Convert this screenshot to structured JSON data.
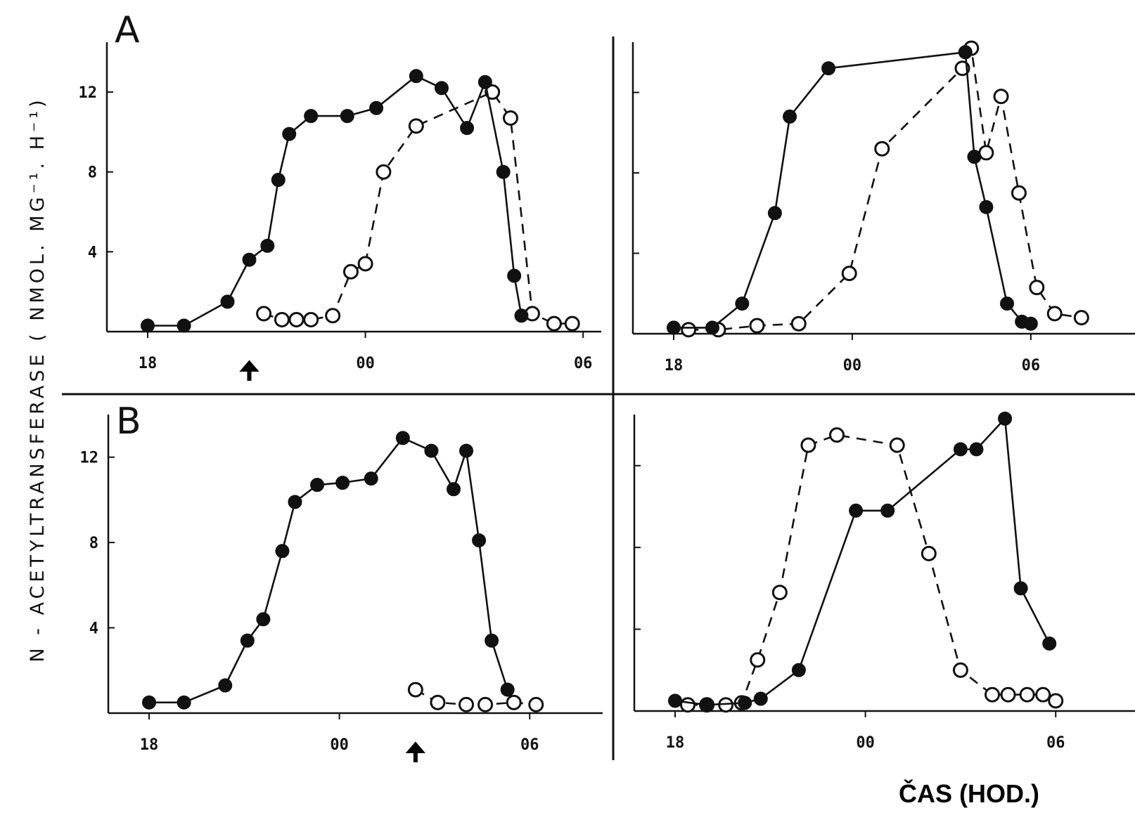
{
  "figure": {
    "y_axis_label": "N - ACETYLTRANSFERASE ( NMOL. MG⁻¹. H⁻¹)",
    "x_axis_title": "ČAS (HOD.)",
    "panel_labels": [
      "A",
      "B"
    ]
  },
  "chart_data": [
    {
      "type": "line",
      "panel": "A",
      "xlabel": "",
      "ylabel": "",
      "x_ticks": [
        "18",
        "00",
        "06"
      ],
      "y_ticks": [
        "4",
        "8",
        "12"
      ],
      "xlim": [
        18,
        30.5
      ],
      "ylim": [
        0,
        14.5
      ],
      "annotations": [
        {
          "type": "arrow",
          "x": 20.8
        }
      ],
      "series": [
        {
          "marker": "filled",
          "style": "solid",
          "x": [
            18,
            19,
            20.2,
            20.8,
            21.3,
            21.6,
            21.9,
            22.5,
            23.5,
            24.3,
            25.4,
            26.1,
            26.8,
            27.3,
            27.8,
            28.1,
            28.3
          ],
          "y": [
            0.3,
            0.3,
            1.5,
            3.6,
            4.3,
            7.6,
            9.9,
            10.8,
            10.8,
            11.2,
            12.8,
            12.2,
            10.2,
            12.5,
            8.0,
            2.8,
            0.8
          ]
        },
        {
          "marker": "open",
          "style": "dashed",
          "x": [
            21.2,
            21.7,
            22.1,
            22.5,
            23.1,
            23.6,
            24.0,
            24.5,
            25.4,
            27.5,
            28.0,
            28.6,
            29.2,
            29.7
          ],
          "y": [
            0.9,
            0.6,
            0.6,
            0.6,
            0.8,
            3.0,
            3.4,
            8.0,
            10.3,
            12.0,
            10.7,
            0.9,
            0.4,
            0.4
          ]
        }
      ]
    },
    {
      "type": "line",
      "panel": "A",
      "xlabel": "",
      "ylabel": "",
      "x_ticks": [
        "18",
        "00",
        "06"
      ],
      "y_ticks": [
        "",
        "",
        ""
      ],
      "xlim": [
        18,
        33.5
      ],
      "ylim": [
        0,
        14.5
      ],
      "series": [
        {
          "marker": "filled",
          "style": "solid",
          "x": [
            18,
            19.3,
            20.3,
            21.4,
            21.9,
            23.2,
            27.8,
            28.1,
            28.5,
            29.2,
            29.7,
            30.0
          ],
          "y": [
            0.3,
            0.3,
            1.5,
            6.0,
            10.8,
            13.2,
            14.0,
            8.8,
            6.3,
            1.5,
            0.6,
            0.5
          ]
        },
        {
          "marker": "open",
          "style": "dashed",
          "x": [
            18.5,
            19.5,
            20.8,
            22.2,
            23.9,
            25.0,
            27.7,
            28.0,
            28.5,
            29.0,
            29.6,
            30.2,
            30.8,
            31.7
          ],
          "y": [
            0.2,
            0.2,
            0.4,
            0.5,
            3.0,
            9.2,
            13.2,
            14.2,
            9.0,
            11.8,
            7.0,
            2.3,
            1.0,
            0.8
          ]
        }
      ]
    },
    {
      "type": "line",
      "panel": "B",
      "xlabel": "",
      "ylabel": "",
      "x_ticks": [
        "18",
        "00",
        "06"
      ],
      "y_ticks": [
        "4",
        "8",
        "12"
      ],
      "xlim": [
        18,
        32.3
      ],
      "ylim": [
        0,
        14
      ],
      "annotations": [
        {
          "type": "arrow",
          "x": 26.4
        }
      ],
      "series": [
        {
          "marker": "filled",
          "style": "solid",
          "x": [
            18,
            19.1,
            20.4,
            21.1,
            21.6,
            22.2,
            22.6,
            23.3,
            24.1,
            25.0,
            26.0,
            26.9,
            27.6,
            28.0,
            28.4,
            28.8,
            29.3
          ],
          "y": [
            0.5,
            0.5,
            1.3,
            3.4,
            4.4,
            7.6,
            9.9,
            10.7,
            10.8,
            11.0,
            12.9,
            12.3,
            10.5,
            12.3,
            8.1,
            3.4,
            1.1
          ]
        },
        {
          "marker": "open",
          "style": "dashed",
          "x": [
            26.4,
            27.1,
            28.0,
            28.6,
            29.5,
            30.2
          ],
          "y": [
            1.1,
            0.5,
            0.4,
            0.4,
            0.5,
            0.4
          ]
        }
      ]
    },
    {
      "type": "line",
      "panel": "B",
      "xlabel": "",
      "ylabel": "",
      "x_ticks": [
        "18",
        "00",
        "06"
      ],
      "y_ticks": [
        "",
        "",
        ""
      ],
      "xlim": [
        18,
        32.5
      ],
      "ylim": [
        0,
        14.5
      ],
      "series": [
        {
          "marker": "filled",
          "style": "solid",
          "x": [
            18,
            19.0,
            20.2,
            20.7,
            21.9,
            23.7,
            24.7,
            27.0,
            27.5,
            28.4,
            28.9,
            29.8
          ],
          "y": [
            0.5,
            0.3,
            0.4,
            0.6,
            2.0,
            9.8,
            9.8,
            12.8,
            12.8,
            14.3,
            6.0,
            3.3
          ]
        },
        {
          "marker": "open",
          "style": "dashed",
          "x": [
            18.4,
            19.0,
            19.6,
            20.1,
            20.6,
            21.3,
            22.2,
            23.1,
            25.0,
            26.0,
            27.0,
            28.0,
            28.5,
            29.1,
            29.6,
            30.0
          ],
          "y": [
            0.3,
            0.3,
            0.3,
            0.4,
            2.5,
            5.8,
            13.0,
            13.5,
            13.0,
            7.7,
            2.0,
            0.8,
            0.8,
            0.8,
            0.8,
            0.5
          ]
        }
      ]
    }
  ]
}
